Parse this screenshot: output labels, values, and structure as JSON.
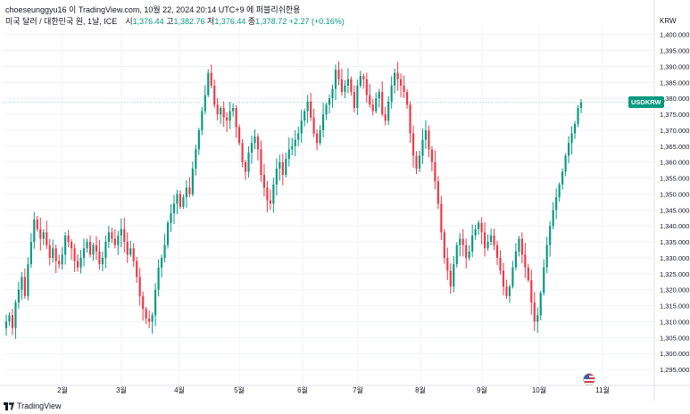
{
  "header": {
    "title": "choeseunggyu16 이 TradingView.com, 10월 22, 2024 20:14 UTC+9 에 퍼블리쉬한용",
    "symbol": "미국 달러 / 대한민국 원, 1날, ICE",
    "open_label": "시",
    "open": "1,376.44",
    "high_label": "고",
    "high": "1,382.76",
    "low_label": "저",
    "low": "1,376.44",
    "close_label": "종",
    "close": "1,378.72",
    "change": "+2.27 (+0.16%)"
  },
  "price_tag": "USDKRW",
  "footer": {
    "brand": "TradingView"
  },
  "colors": {
    "up": "#089981",
    "down": "#f23645",
    "grid": "#f0f3fa",
    "text": "#131722"
  },
  "icons": [
    "tradingview-logo-icon",
    "us-flag-icon"
  ],
  "chart_data": {
    "type": "candlestick",
    "ylabel": "KRW",
    "ylim": [
      1290,
      1403
    ],
    "yticks": [
      1295,
      1300,
      1305,
      1310,
      1315,
      1320,
      1325,
      1330,
      1335,
      1340,
      1345,
      1350,
      1355,
      1360,
      1365,
      1370,
      1375,
      1380,
      1385,
      1390,
      1395,
      1400
    ],
    "xticks": [
      "2월",
      "3월",
      "4월",
      "5월",
      "6월",
      "7월",
      "8월",
      "9월",
      "10월",
      "11월"
    ],
    "grid": true,
    "last_price_label": "USDKRW",
    "closes": [
      1310,
      1312,
      1308,
      1316,
      1320,
      1324,
      1318,
      1328,
      1335,
      1342,
      1339,
      1336,
      1338,
      1334,
      1330,
      1333,
      1329,
      1328,
      1331,
      1337,
      1335,
      1333,
      1329,
      1327,
      1330,
      1333,
      1335,
      1331,
      1334,
      1332,
      1328,
      1330,
      1335,
      1338,
      1336,
      1334,
      1337,
      1339,
      1335,
      1331,
      1333,
      1329,
      1324,
      1318,
      1314,
      1311,
      1310,
      1312,
      1320,
      1327,
      1330,
      1334,
      1341,
      1344,
      1347,
      1350,
      1346,
      1349,
      1352,
      1350,
      1358,
      1364,
      1370,
      1376,
      1381,
      1388,
      1384,
      1378,
      1375,
      1377,
      1374,
      1373,
      1376,
      1377,
      1371,
      1366,
      1360,
      1357,
      1363,
      1366,
      1368,
      1364,
      1356,
      1352,
      1348,
      1347,
      1353,
      1358,
      1360,
      1356,
      1361,
      1364,
      1365,
      1367,
      1369,
      1373,
      1376,
      1379,
      1374,
      1369,
      1366,
      1370,
      1375,
      1378,
      1380,
      1383,
      1389,
      1386,
      1382,
      1384,
      1386,
      1382,
      1377,
      1384,
      1387,
      1386,
      1381,
      1378,
      1376,
      1380,
      1382,
      1375,
      1373,
      1379,
      1384,
      1388,
      1386,
      1384,
      1382,
      1378,
      1369,
      1362,
      1358,
      1362,
      1367,
      1370,
      1364,
      1360,
      1354,
      1347,
      1338,
      1330,
      1326,
      1321,
      1328,
      1334,
      1336,
      1334,
      1330,
      1332,
      1337,
      1339,
      1341,
      1338,
      1333,
      1335,
      1337,
      1334,
      1330,
      1326,
      1321,
      1318,
      1321,
      1327,
      1332,
      1336,
      1331,
      1327,
      1323,
      1316,
      1310,
      1312,
      1319,
      1327,
      1334,
      1340,
      1345,
      1349,
      1353,
      1357,
      1362,
      1366,
      1369,
      1372,
      1377,
      1378.72
    ]
  }
}
